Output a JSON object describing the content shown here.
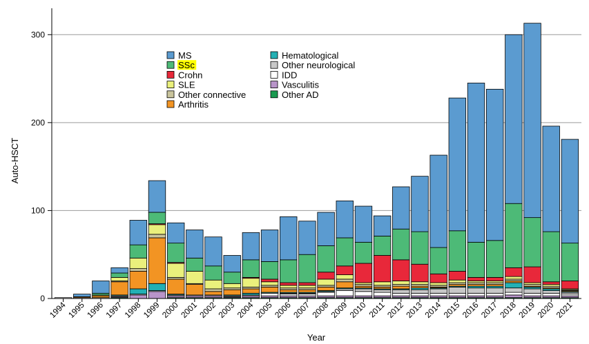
{
  "chart_data": {
    "type": "bar",
    "stacked": true,
    "title": "",
    "xlabel": "Year",
    "ylabel": "Auto-HSCT",
    "ylim": [
      0,
      330
    ],
    "yticks": [
      0,
      100,
      200,
      300
    ],
    "grid": true,
    "legend_position": "top-left",
    "categories": [
      "1994",
      "1995",
      "1996",
      "1997",
      "1998",
      "1999",
      "2000",
      "2001",
      "2002",
      "2003",
      "2004",
      "2005",
      "2006",
      "2007",
      "2008",
      "2009",
      "2010",
      "2011",
      "2012",
      "2013",
      "2014",
      "2015",
      "2016",
      "2017",
      "2018",
      "2019",
      "2020",
      "2021"
    ],
    "series": [
      {
        "name": "Other AD",
        "color": "#1a9a50",
        "values": [
          0,
          0,
          0,
          1,
          0,
          0,
          1,
          1,
          1,
          1,
          1,
          1,
          1,
          1,
          1,
          1,
          1,
          1,
          1,
          1,
          1,
          1,
          1,
          1,
          1,
          1,
          1,
          1
        ]
      },
      {
        "name": "Vasculitis",
        "color": "#b894c9",
        "values": [
          0,
          0,
          0,
          1,
          4,
          8,
          2,
          2,
          2,
          1,
          2,
          2,
          2,
          2,
          2,
          2,
          2,
          2,
          2,
          2,
          2,
          2,
          2,
          2,
          3,
          2,
          2,
          2
        ]
      },
      {
        "name": "IDD",
        "color": "#ffffff",
        "values": [
          1,
          1,
          1,
          1,
          1,
          1,
          1,
          1,
          1,
          1,
          1,
          3,
          2,
          2,
          4,
          6,
          5,
          4,
          3,
          3,
          3,
          3,
          3,
          3,
          3,
          3,
          3,
          2
        ]
      },
      {
        "name": "Other neurological",
        "color": "#c8c8c8",
        "values": [
          0,
          0,
          0,
          0,
          0,
          0,
          0,
          0,
          0,
          0,
          0,
          0,
          1,
          1,
          1,
          2,
          3,
          3,
          4,
          4,
          5,
          7,
          6,
          6,
          5,
          5,
          3,
          2
        ]
      },
      {
        "name": "Hematological",
        "color": "#23b0b4",
        "values": [
          0,
          0,
          0,
          1,
          6,
          8,
          1,
          0,
          0,
          1,
          2,
          1,
          1,
          1,
          1,
          1,
          1,
          1,
          1,
          2,
          1,
          1,
          2,
          2,
          6,
          2,
          2,
          1
        ]
      },
      {
        "name": "Arthritis",
        "color": "#f29423",
        "values": [
          0,
          1,
          2,
          15,
          20,
          52,
          17,
          12,
          4,
          6,
          5,
          6,
          3,
          3,
          4,
          7,
          2,
          2,
          3,
          2,
          1,
          2,
          2,
          2,
          2,
          1,
          1,
          1
        ]
      },
      {
        "name": "Other connective",
        "color": "#c9c49c",
        "values": [
          0,
          0,
          0,
          1,
          3,
          4,
          2,
          1,
          3,
          2,
          2,
          2,
          2,
          2,
          2,
          3,
          2,
          2,
          2,
          2,
          2,
          2,
          2,
          2,
          2,
          2,
          2,
          1
        ]
      },
      {
        "name": "SLE",
        "color": "#eaf07c",
        "values": [
          0,
          0,
          1,
          4,
          12,
          11,
          16,
          14,
          10,
          5,
          10,
          4,
          3,
          3,
          7,
          5,
          2,
          4,
          4,
          3,
          3,
          3,
          2,
          2,
          3,
          2,
          2,
          1
        ]
      },
      {
        "name": "Crohn",
        "color": "#e8283a",
        "values": [
          0,
          0,
          0,
          0,
          0,
          1,
          1,
          0,
          0,
          0,
          1,
          3,
          3,
          3,
          8,
          10,
          22,
          30,
          24,
          20,
          10,
          10,
          4,
          4,
          10,
          18,
          3,
          9
        ]
      },
      {
        "name": "SSc",
        "color": "#4dba77",
        "values": [
          0,
          0,
          2,
          5,
          15,
          13,
          22,
          15,
          16,
          13,
          20,
          20,
          26,
          32,
          30,
          32,
          24,
          22,
          35,
          37,
          30,
          46,
          40,
          42,
          73,
          56,
          57,
          43
        ]
      },
      {
        "name": "MS",
        "color": "#5b9bd0",
        "values": [
          0,
          3,
          14,
          6,
          28,
          36,
          23,
          32,
          33,
          19,
          31,
          36,
          49,
          38,
          38,
          42,
          41,
          23,
          48,
          63,
          105,
          151,
          181,
          172,
          192,
          221,
          120,
          118
        ]
      }
    ],
    "legend": {
      "columns": [
        [
          {
            "label": "MS",
            "color": "#5b9bd0"
          },
          {
            "label": "SSc",
            "color": "#4dba77",
            "highlight": "#ffff00"
          },
          {
            "label": "Crohn",
            "color": "#e8283a"
          },
          {
            "label": "SLE",
            "color": "#eaf07c"
          },
          {
            "label": "Other connective",
            "color": "#c9c49c"
          },
          {
            "label": "Arthritis",
            "color": "#f29423"
          }
        ],
        [
          {
            "label": "Hematological",
            "color": "#23b0b4"
          },
          {
            "label": "Other neurological",
            "color": "#c8c8c8"
          },
          {
            "label": "IDD",
            "color": "#ffffff"
          },
          {
            "label": "Vasculitis",
            "color": "#b894c9"
          },
          {
            "label": "Other AD",
            "color": "#1a9a50"
          }
        ]
      ]
    }
  }
}
